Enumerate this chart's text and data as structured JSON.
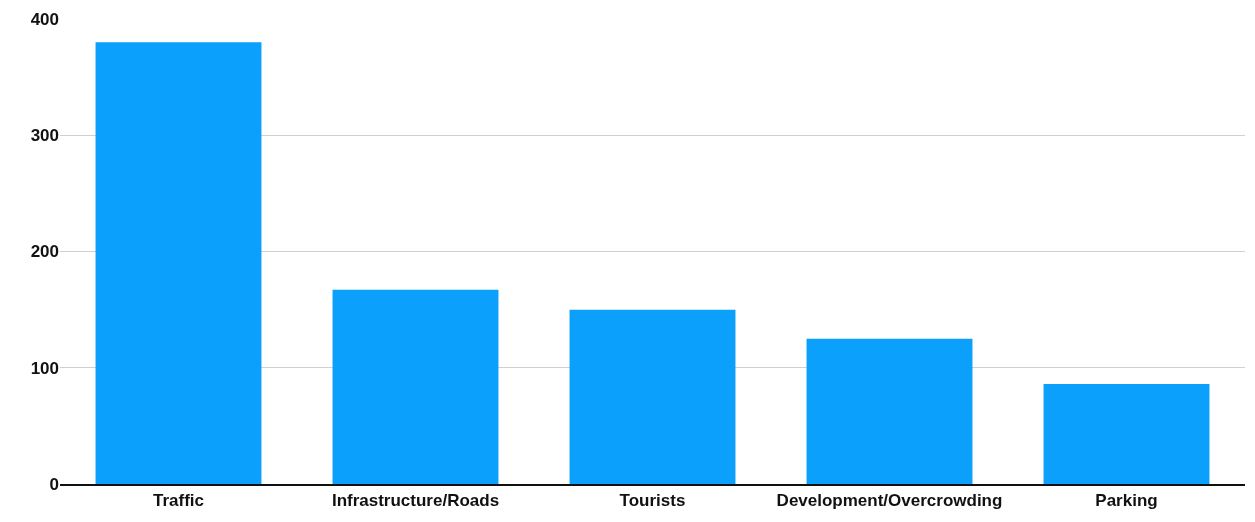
{
  "chart_data": {
    "type": "bar",
    "categories": [
      "Traffic",
      "Infrastructure/Roads",
      "Tourists",
      "Development/Overcrowding",
      "Parking"
    ],
    "values": [
      380,
      167,
      150,
      125,
      86
    ],
    "color": "#0aa0fc",
    "ylim": [
      0,
      400
    ],
    "yticks": [
      0,
      100,
      200,
      300,
      400
    ],
    "grid": "y"
  }
}
